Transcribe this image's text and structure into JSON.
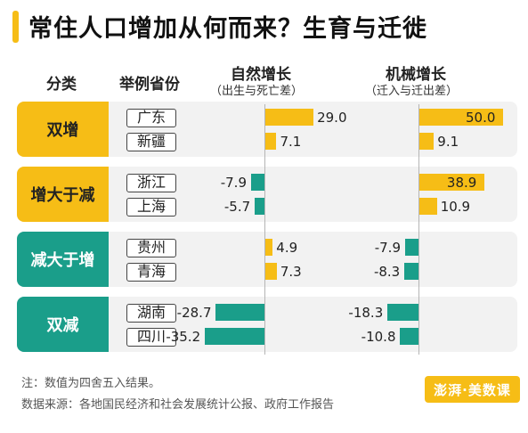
{
  "chart_data": {
    "type": "bar",
    "title": "常住人口增加从何而来？生育与迁徙",
    "columns": {
      "category": "分类",
      "province": "举例省份"
    },
    "series": [
      {
        "name": "自然增长",
        "note": "（出生与死亡差）"
      },
      {
        "name": "机械增长",
        "note": "（迁入与迁出差）"
      }
    ],
    "groups": [
      {
        "label": "双增",
        "color": "yellow",
        "rows": [
          {
            "province": "广东",
            "natural": 29.0,
            "natural_text": "29.0",
            "migration": 50.0,
            "migration_text": "50.0"
          },
          {
            "province": "新疆",
            "natural": 7.1,
            "natural_text": "7.1",
            "migration": 9.1,
            "migration_text": "9.1"
          }
        ]
      },
      {
        "label": "增大于减",
        "color": "yellow",
        "rows": [
          {
            "province": "浙江",
            "natural": -7.9,
            "natural_text": "-7.9",
            "migration": 38.9,
            "migration_text": "38.9"
          },
          {
            "province": "上海",
            "natural": -5.7,
            "natural_text": "-5.7",
            "migration": 10.9,
            "migration_text": "10.9"
          }
        ]
      },
      {
        "label": "减大于增",
        "color": "teal",
        "rows": [
          {
            "province": "贵州",
            "natural": 4.9,
            "natural_text": "4.9",
            "migration": -7.9,
            "migration_text": "-7.9"
          },
          {
            "province": "青海",
            "natural": 7.3,
            "natural_text": "7.3",
            "migration": -8.3,
            "migration_text": "-8.3"
          }
        ]
      },
      {
        "label": "双减",
        "color": "teal",
        "rows": [
          {
            "province": "湖南",
            "natural": -28.7,
            "natural_text": "-28.7",
            "migration": -18.3,
            "migration_text": "-18.3"
          },
          {
            "province": "四川",
            "natural": -35.2,
            "natural_text": "-35.2",
            "migration": -10.8,
            "migration_text": "-10.8"
          }
        ]
      }
    ]
  },
  "colors": {
    "positive": "#f6bd16",
    "negative": "#1a9e8a"
  },
  "footer": {
    "note": "注：数值为四舍五入结果。",
    "source": "数据来源：各地国民经济和社会发展统计公报、政府工作报告"
  },
  "logo": {
    "text": "澎湃·美数课"
  }
}
